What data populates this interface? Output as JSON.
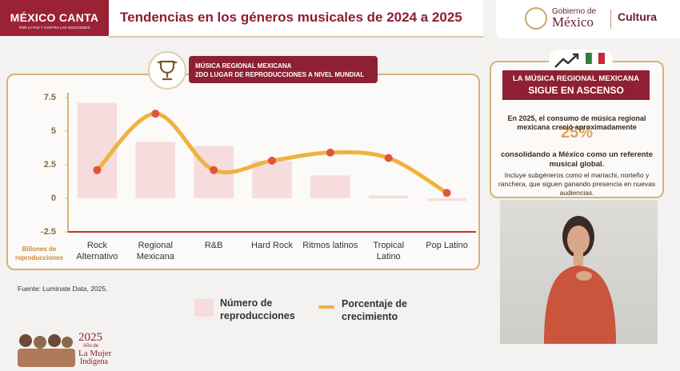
{
  "header": {
    "brand": "MÉXICO CANTA",
    "brand_sub": "POR LA PAZ Y CONTRA LAS ADICCIONES",
    "title": "Tendencias en los géneros musicales de 2024 a 2025",
    "gov_line1": "Gobierno de",
    "gov_line2": "México",
    "culture": "Cultura"
  },
  "badge": {
    "line1": "MÚSICA REGIONAL MEXICANA",
    "line2": "2DO LUGAR DE REPRODUCCIONES A NIVEL MUNDIAL"
  },
  "chart_data": {
    "type": "combo",
    "y_label": "Billones de reproducciones",
    "categories": [
      "Rock Alternativo",
      "Regional Mexicana",
      "R&B",
      "Hard Rock",
      "Ritmos latinos",
      "Tropical Latino",
      "Pop Latino"
    ],
    "series": [
      {
        "name": "Número de reproducciones",
        "type": "bar",
        "color": "#f6dcdc",
        "values": [
          7.1,
          4.2,
          3.9,
          2.8,
          1.7,
          0.2,
          -0.2
        ]
      },
      {
        "name": "Porcentaje de crecimiento",
        "type": "line",
        "color": "#efb23f",
        "marker_color": "#e0553a",
        "values": [
          2.1,
          6.3,
          2.1,
          2.8,
          3.4,
          3.0,
          0.4
        ]
      }
    ],
    "ylim": [
      -2.5,
      7.5
    ],
    "yticks": [
      -2.5,
      0,
      2.5,
      5,
      7.5
    ],
    "grid": false
  },
  "source": "Fuente: Luminate Data, 2025.",
  "panel": {
    "heading1": "LA MÚSICA REGIONAL MEXICANA",
    "heading2": "SIGUE EN ASCENSO",
    "text1": "En 2025, el consumo de música regional mexicana creció aproximadamente",
    "highlight": "25%",
    "text2": "consolidando a México como un referente musical global.",
    "text3": "Incluye subgéneros como el mariachi, norteño y ranchera, que siguen ganando presencia en nuevas audiencias."
  },
  "footer": {
    "year": "2025",
    "line1": "Año de",
    "line2": "La Mujer",
    "line3": "Indígena"
  }
}
